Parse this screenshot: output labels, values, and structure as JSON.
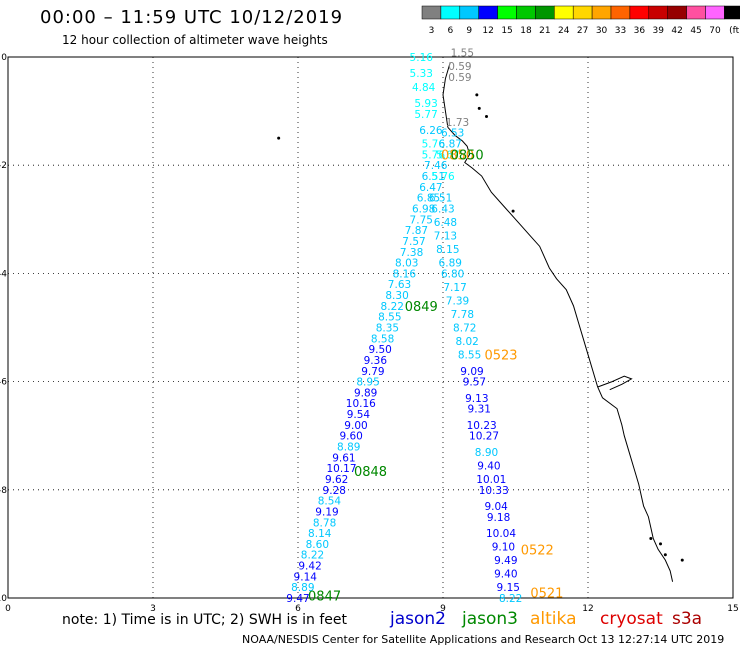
{
  "title": "00:00 – 11:59 UTC 10/12/2019",
  "subtitle": "12 hour collection of altimeter wave heights",
  "note": "note: 1) Time is in UTC; 2) SWH is in feet",
  "credit": "NOAA/NESDIS Center for Satellite Applications and Research",
  "timestamp": "Oct 13 12:27:14 UTC 2019",
  "color_scale": {
    "labels": [
      "3",
      "6",
      "9",
      "12",
      "15",
      "18",
      "21",
      "24",
      "27",
      "30",
      "33",
      "36",
      "39",
      "42",
      "45",
      "70",
      "(ft)"
    ],
    "colors": [
      "#808080",
      "#00ffff",
      "#00c8ff",
      "#0000ff",
      "#00ff00",
      "#00c800",
      "#009600",
      "#ffff00",
      "#ffd700",
      "#ffa500",
      "#ff6400",
      "#ff0000",
      "#c80000",
      "#960000",
      "#ff50a0",
      "#ff64ff",
      "#000000"
    ]
  },
  "satellites": [
    {
      "name": "jason2",
      "color": "#0000cc"
    },
    {
      "name": "jason3",
      "color": "#008800"
    },
    {
      "name": "altika",
      "color": "#ff9900"
    },
    {
      "name": "cryosat",
      "color": "#dd0000"
    },
    {
      "name": "s3a",
      "color": "#aa0000"
    }
  ],
  "chart_data": {
    "type": "scatter",
    "title": "00:00 – 11:59 UTC 10/12/2019",
    "xlim": [
      0,
      15
    ],
    "ylim": [
      -10,
      0
    ],
    "xticks": [
      "0",
      "3",
      "6",
      "9",
      "12",
      "15"
    ],
    "yticks": [
      "0",
      "-2",
      "-4",
      "-6",
      "-8",
      "-10"
    ],
    "grid": true,
    "time_labels": [
      {
        "text": "0850",
        "x": 9.3,
        "y": -1.8,
        "color": "#ff9900"
      },
      {
        "text": "0850",
        "x": 9.5,
        "y": -1.8,
        "color": "#008800"
      },
      {
        "text": "0849",
        "x": 8.55,
        "y": -4.6,
        "color": "#008800"
      },
      {
        "text": "0523",
        "x": 10.2,
        "y": -5.5,
        "color": "#ff9900"
      },
      {
        "text": "0848",
        "x": 7.5,
        "y": -7.65,
        "color": "#008800"
      },
      {
        "text": "0522",
        "x": 10.95,
        "y": -9.1,
        "color": "#ff9900"
      },
      {
        "text": "0847",
        "x": 6.55,
        "y": -9.95,
        "color": "#008800"
      },
      {
        "text": "0521",
        "x": 11.15,
        "y": -9.9,
        "color": "#ff9900"
      }
    ],
    "series": [
      {
        "name": "jason3",
        "points": [
          {
            "x": 8.55,
            "y": 0.0,
            "v": "5.16"
          },
          {
            "x": 8.55,
            "y": -0.3,
            "v": "5.33"
          },
          {
            "x": 8.6,
            "y": -0.55,
            "v": "4.84"
          },
          {
            "x": 8.65,
            "y": -0.85,
            "v": "5.93"
          },
          {
            "x": 8.65,
            "y": -1.05,
            "v": "5.77"
          },
          {
            "x": 8.75,
            "y": -1.35,
            "v": "6.26"
          },
          {
            "x": 8.8,
            "y": -1.6,
            "v": "5.76"
          },
          {
            "x": 8.8,
            "y": -1.8,
            "v": "5.76"
          },
          {
            "x": 8.85,
            "y": -2.0,
            "v": "7.46"
          },
          {
            "x": 8.8,
            "y": -2.2,
            "v": "6.51"
          },
          {
            "x": 8.75,
            "y": -2.4,
            "v": "6.47"
          },
          {
            "x": 8.7,
            "y": -2.6,
            "v": "6.85"
          },
          {
            "x": 8.6,
            "y": -2.8,
            "v": "6.98"
          },
          {
            "x": 8.55,
            "y": -3.0,
            "v": "7.75"
          },
          {
            "x": 8.45,
            "y": -3.2,
            "v": "7.87"
          },
          {
            "x": 8.4,
            "y": -3.4,
            "v": "7.57"
          },
          {
            "x": 8.35,
            "y": -3.6,
            "v": "7.38"
          },
          {
            "x": 8.25,
            "y": -3.8,
            "v": "8.03"
          },
          {
            "x": 8.2,
            "y": -4.0,
            "v": "8.16"
          },
          {
            "x": 8.1,
            "y": -4.2,
            "v": "7.63"
          },
          {
            "x": 8.05,
            "y": -4.4,
            "v": "8.30"
          },
          {
            "x": 7.95,
            "y": -4.6,
            "v": "8.22"
          },
          {
            "x": 7.9,
            "y": -4.8,
            "v": "8.55"
          },
          {
            "x": 7.85,
            "y": -5.0,
            "v": "8.35"
          },
          {
            "x": 7.75,
            "y": -5.2,
            "v": "8.58"
          },
          {
            "x": 7.7,
            "y": -5.4,
            "v": "9.50"
          },
          {
            "x": 7.6,
            "y": -5.6,
            "v": "9.36"
          },
          {
            "x": 7.55,
            "y": -5.8,
            "v": "9.79"
          },
          {
            "x": 7.45,
            "y": -6.0,
            "v": "8.95"
          },
          {
            "x": 7.4,
            "y": -6.2,
            "v": "9.89"
          },
          {
            "x": 7.3,
            "y": -6.4,
            "v": "10.16"
          },
          {
            "x": 7.25,
            "y": -6.6,
            "v": "9.54"
          },
          {
            "x": 7.2,
            "y": -6.8,
            "v": "9.00"
          },
          {
            "x": 7.1,
            "y": -7.0,
            "v": "9.60"
          },
          {
            "x": 7.05,
            "y": -7.2,
            "v": "8.89"
          },
          {
            "x": 6.95,
            "y": -7.4,
            "v": "9.61"
          },
          {
            "x": 6.9,
            "y": -7.6,
            "v": "10.17"
          },
          {
            "x": 6.8,
            "y": -7.8,
            "v": "9.62"
          },
          {
            "x": 6.75,
            "y": -8.0,
            "v": "9.28"
          },
          {
            "x": 6.65,
            "y": -8.2,
            "v": "8.54"
          },
          {
            "x": 6.6,
            "y": -8.4,
            "v": "9.19"
          },
          {
            "x": 6.55,
            "y": -8.6,
            "v": "8.78"
          },
          {
            "x": 6.45,
            "y": -8.8,
            "v": "8.14"
          },
          {
            "x": 6.4,
            "y": -9.0,
            "v": "8.60"
          },
          {
            "x": 6.3,
            "y": -9.2,
            "v": "8.22"
          },
          {
            "x": 6.25,
            "y": -9.4,
            "v": "9.42"
          },
          {
            "x": 6.15,
            "y": -9.6,
            "v": "9.14"
          },
          {
            "x": 6.1,
            "y": -9.8,
            "v": "8.89"
          },
          {
            "x": 6.0,
            "y": -10.0,
            "v": "9.47"
          }
        ]
      },
      {
        "name": "altika",
        "points": [
          {
            "x": 9.4,
            "y": 0.08,
            "v": "1.55"
          },
          {
            "x": 9.35,
            "y": -0.17,
            "v": "0.59"
          },
          {
            "x": 9.35,
            "y": -0.37,
            "v": "0.59"
          },
          {
            "x": 9.3,
            "y": -1.2,
            "v": "1.73"
          },
          {
            "x": 9.2,
            "y": -1.4,
            "v": "6.53"
          },
          {
            "x": 9.15,
            "y": -1.6,
            "v": "6.87"
          },
          {
            "x": 9.1,
            "y": -1.8,
            "v": "5.67"
          },
          {
            "x": 9.0,
            "y": -2.2,
            "v": "5.76"
          },
          {
            "x": 8.95,
            "y": -2.6,
            "v": "6.51"
          },
          {
            "x": 9.0,
            "y": -2.8,
            "v": "6.43"
          },
          {
            "x": 9.05,
            "y": -3.05,
            "v": "6.48"
          },
          {
            "x": 9.05,
            "y": -3.3,
            "v": "7.13"
          },
          {
            "x": 9.1,
            "y": -3.55,
            "v": "8.15"
          },
          {
            "x": 9.15,
            "y": -3.8,
            "v": "6.89"
          },
          {
            "x": 9.2,
            "y": -4.0,
            "v": "6.80"
          },
          {
            "x": 9.25,
            "y": -4.25,
            "v": "7.17"
          },
          {
            "x": 9.3,
            "y": -4.5,
            "v": "7.39"
          },
          {
            "x": 9.4,
            "y": -4.75,
            "v": "7.78"
          },
          {
            "x": 9.45,
            "y": -5.0,
            "v": "8.72"
          },
          {
            "x": 9.5,
            "y": -5.25,
            "v": "8.02"
          },
          {
            "x": 9.55,
            "y": -5.5,
            "v": "8.55"
          },
          {
            "x": 9.6,
            "y": -5.8,
            "v": "9.09"
          },
          {
            "x": 9.65,
            "y": -6.0,
            "v": "9.57"
          },
          {
            "x": 9.7,
            "y": -6.3,
            "v": "9.13"
          },
          {
            "x": 9.75,
            "y": -6.5,
            "v": "9.31"
          },
          {
            "x": 9.8,
            "y": -6.8,
            "v": "10.23"
          },
          {
            "x": 9.85,
            "y": -7.0,
            "v": "10.27"
          },
          {
            "x": 9.9,
            "y": -7.3,
            "v": "8.90"
          },
          {
            "x": 9.95,
            "y": -7.55,
            "v": "9.40"
          },
          {
            "x": 10.0,
            "y": -7.8,
            "v": "10.01"
          },
          {
            "x": 10.05,
            "y": -8.0,
            "v": "10.33"
          },
          {
            "x": 10.1,
            "y": -8.3,
            "v": "9.04"
          },
          {
            "x": 10.15,
            "y": -8.5,
            "v": "9.18"
          },
          {
            "x": 10.2,
            "y": -8.8,
            "v": "10.04"
          },
          {
            "x": 10.25,
            "y": -9.05,
            "v": "9.10"
          },
          {
            "x": 10.3,
            "y": -9.3,
            "v": "9.49"
          },
          {
            "x": 10.3,
            "y": -9.55,
            "v": "9.40"
          },
          {
            "x": 10.35,
            "y": -9.8,
            "v": "9.15"
          },
          {
            "x": 10.4,
            "y": -10.0,
            "v": "8.22"
          }
        ]
      }
    ]
  }
}
